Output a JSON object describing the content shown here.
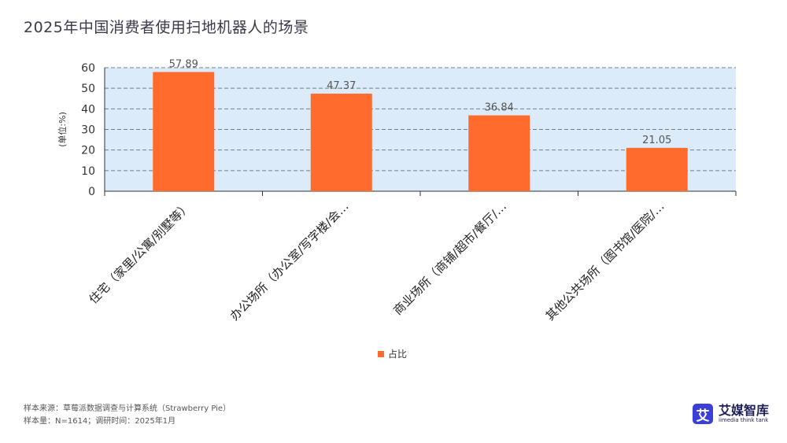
{
  "page": {
    "title": "2025年中国消费者使用扫地机器人的场景",
    "footer_source": "样本来源：草莓派数据调查与计算系统（Strawberry Pie）",
    "footer_sample": "样本量：N=1614；调研时间：2025年1月"
  },
  "brand": {
    "mark": "艾",
    "name_cn": "艾媒智库",
    "name_en": "iimedia think tank",
    "color": "#3b3fd8"
  },
  "chart_data": {
    "type": "bar",
    "ylabel": "(单位:%)",
    "ylim": [
      0,
      60
    ],
    "yticks": [
      0,
      10,
      20,
      30,
      40,
      50,
      60
    ],
    "grid": true,
    "categories": [
      "住宅（家里/公寓/别墅等）",
      "办公场所（办公室/写字楼/会…",
      "商业场所（商铺/超市/餐厅/…",
      "其他公共场所（图书馆/医院/…"
    ],
    "series": [
      {
        "name": "占比",
        "values": [
          57.89,
          47.37,
          36.84,
          21.05
        ],
        "color": "#ff6b2c"
      }
    ],
    "value_labels": [
      "57.89",
      "47.37",
      "36.84",
      "21.05"
    ],
    "legend": "bottom-center",
    "plot_background": "#dcebfa"
  }
}
